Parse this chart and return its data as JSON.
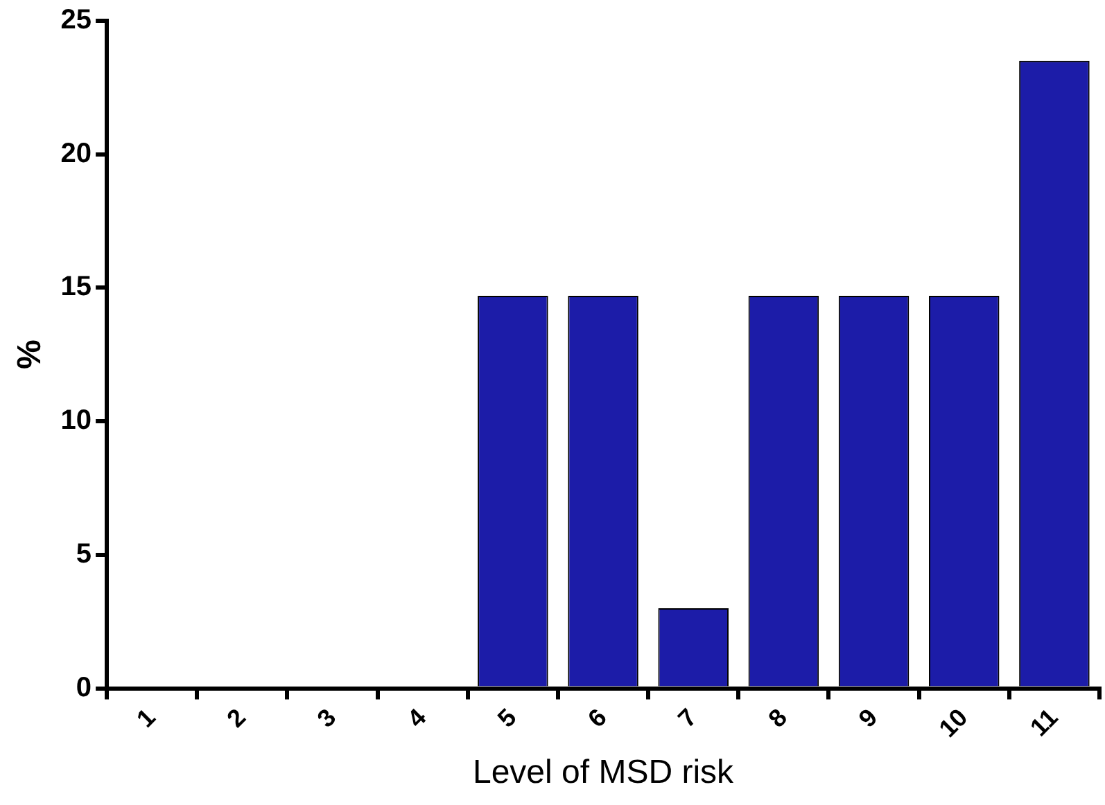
{
  "chart_data": {
    "type": "bar",
    "xlabel": "Level of MSD risk",
    "ylabel": "%",
    "categories": [
      "1",
      "2",
      "3",
      "4",
      "5",
      "6",
      "7",
      "8",
      "9",
      "10",
      "11"
    ],
    "values": [
      0,
      0,
      0,
      0,
      14.7,
      14.7,
      3,
      14.7,
      14.7,
      14.7,
      23.5
    ],
    "color": "#1c1ca8",
    "ylim": [
      0,
      25
    ],
    "yticks": [
      0,
      5,
      10,
      15,
      20,
      25
    ],
    "grid": false,
    "legend": false
  }
}
